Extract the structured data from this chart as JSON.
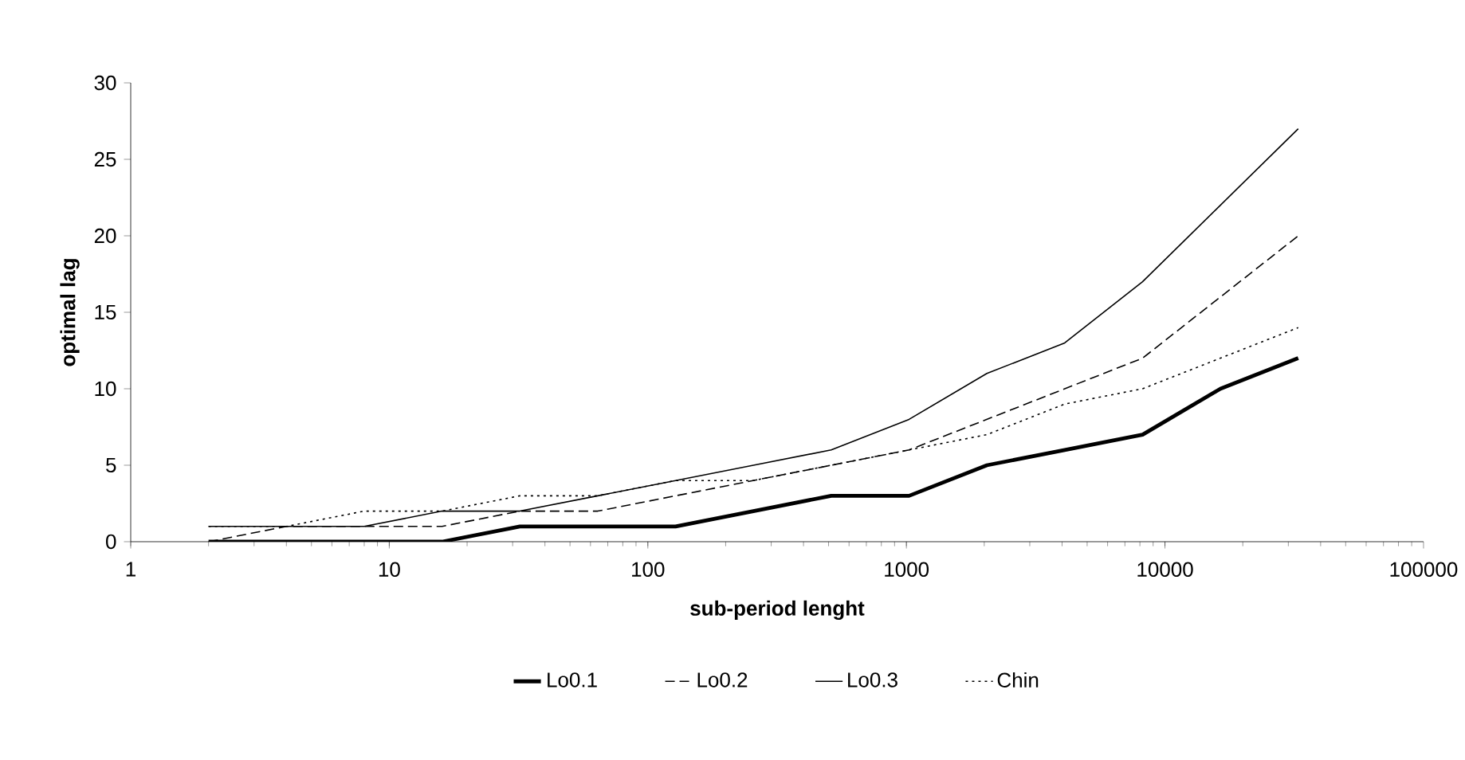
{
  "chart_data": {
    "type": "line",
    "xlabel": "sub-period lenght",
    "ylabel": "optimal lag",
    "log": "x",
    "x": [
      2,
      4,
      8,
      16,
      32,
      64,
      128,
      256,
      512,
      1024,
      2048,
      4096,
      8192,
      16384,
      32768
    ],
    "xlim": [
      1,
      100000
    ],
    "xticks": [
      1,
      10,
      100,
      1000,
      10000,
      100000
    ],
    "ylim": [
      0,
      30
    ],
    "yticks": [
      0,
      5,
      10,
      15,
      20,
      25,
      30
    ],
    "grid": false,
    "legend": "bottom",
    "marker": "none",
    "series": [
      {
        "name": "Lo0.1",
        "color": "#000000",
        "line_style": "solid",
        "values": [
          0,
          0,
          0,
          0,
          1,
          1,
          1,
          2,
          3,
          3,
          5,
          6,
          7,
          10,
          12
        ]
      },
      {
        "name": "Lo0.2",
        "color": "#000000",
        "line_style": "dashed",
        "values": [
          0,
          1,
          1,
          1,
          2,
          2,
          3,
          4,
          5,
          6,
          8,
          10,
          12,
          16,
          20
        ]
      },
      {
        "name": "Lo0.3",
        "color": "#000000",
        "line_style": "solid",
        "values": [
          1,
          1,
          1,
          2,
          2,
          3,
          4,
          5,
          6,
          8,
          11,
          13,
          17,
          22,
          27
        ]
      },
      {
        "name": "Chin",
        "color": "#000000",
        "line_style": "dotted",
        "values": [
          1,
          1,
          2,
          2,
          3,
          3,
          4,
          4,
          5,
          6,
          7,
          9,
          10,
          12,
          14
        ]
      }
    ]
  }
}
